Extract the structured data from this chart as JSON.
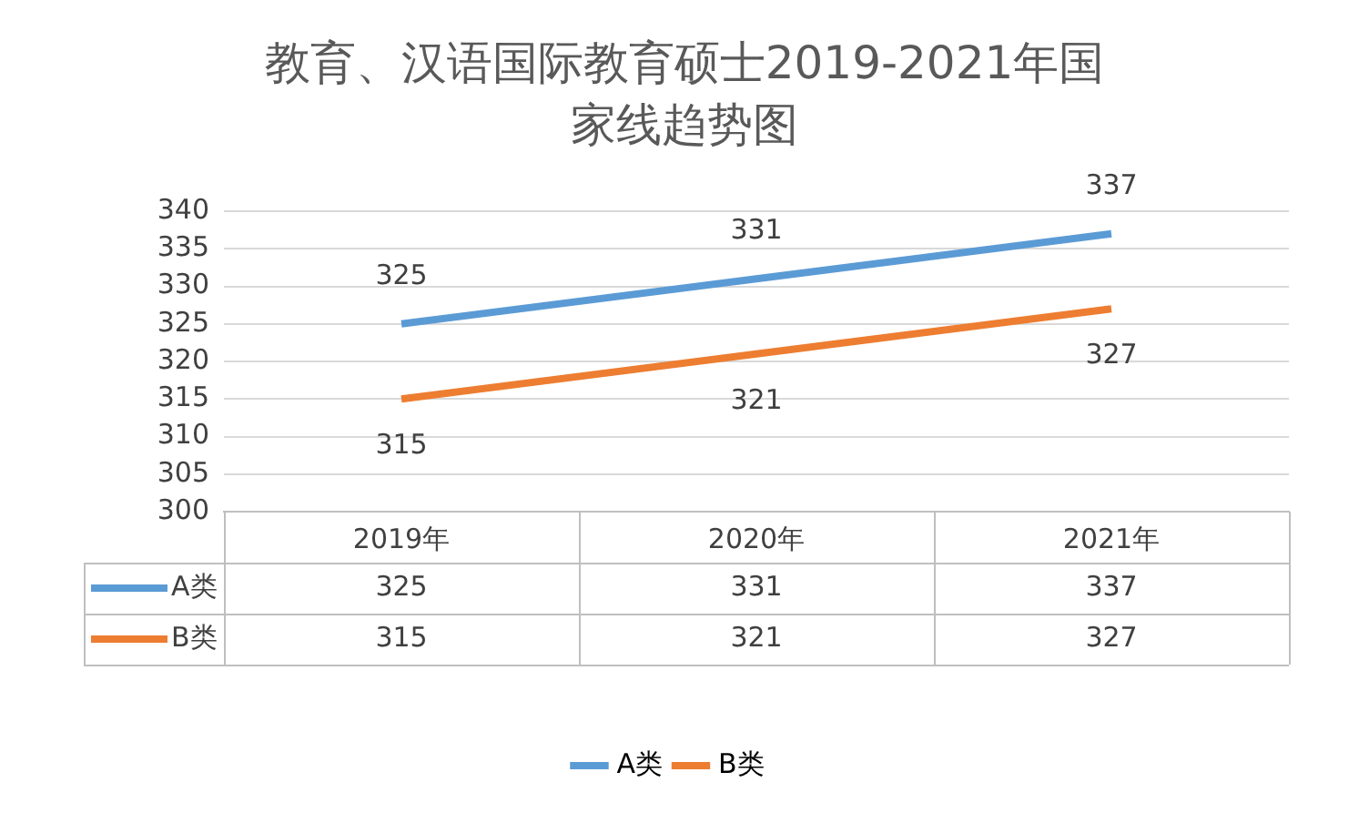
{
  "chart_data": {
    "type": "line",
    "title": "教育、汉语国际教育硕士2019-2021年国家线趋势图",
    "categories": [
      "2019年",
      "2020年",
      "2021年"
    ],
    "series": [
      {
        "name": "A类",
        "color": "#5b9bd5",
        "values": [
          325,
          331,
          337
        ]
      },
      {
        "name": "B类",
        "color": "#ed7d31",
        "values": [
          315,
          321,
          327
        ]
      }
    ],
    "annotations": [
      {
        "text": "325",
        "x": "2019年",
        "y": 325
      },
      {
        "text": "331",
        "x": "2020年",
        "y": 331
      },
      {
        "text": "337",
        "x": "2021年",
        "y": 337
      },
      {
        "text": "315",
        "x": "2019年",
        "y": 315
      },
      {
        "text": "321",
        "x": "2020年",
        "y": 321
      },
      {
        "text": "327",
        "x": "2021年",
        "y": 327
      }
    ],
    "ylim": [
      300,
      340
    ],
    "yticks": [
      300,
      305,
      310,
      315,
      320,
      325,
      330,
      335,
      340
    ],
    "grid": "y",
    "legend": "bottom",
    "marker": "none",
    "line_style": "solid",
    "data_labels": true
  }
}
